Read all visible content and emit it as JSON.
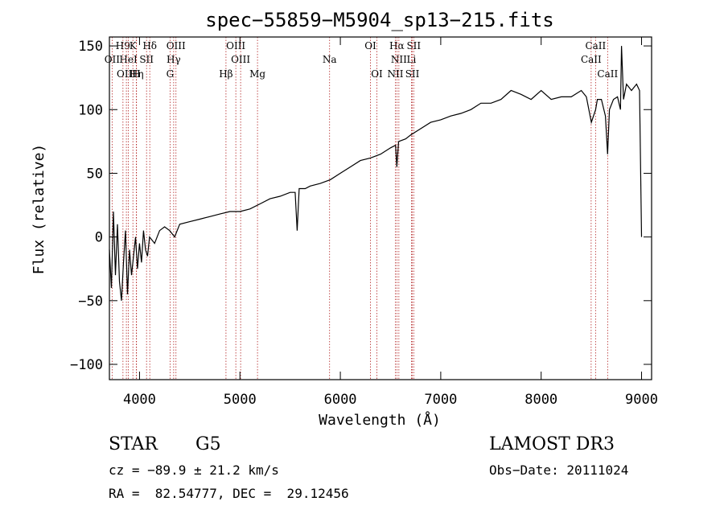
{
  "chart_data": {
    "type": "line",
    "title": "spec−55859−M5904_sp13−215.fits",
    "xlabel": "Wavelength (Å)",
    "ylabel": "Flux (relative)",
    "xlim": [
      3700,
      9100
    ],
    "ylim": [
      -112,
      157
    ],
    "xticks": [
      4000,
      5000,
      6000,
      7000,
      8000,
      9000
    ],
    "yticks": [
      -100,
      -50,
      0,
      50,
      100,
      150
    ],
    "ytick_labels": [
      "−100",
      "−50",
      "0",
      "50",
      "100",
      "150"
    ],
    "series": [
      {
        "name": "spectrum",
        "x": [
          3700,
          3720,
          3740,
          3760,
          3780,
          3800,
          3820,
          3840,
          3860,
          3880,
          3900,
          3920,
          3940,
          3960,
          3980,
          4000,
          4020,
          4040,
          4060,
          4080,
          4100,
          4150,
          4200,
          4250,
          4300,
          4350,
          4400,
          4500,
          4600,
          4700,
          4800,
          4900,
          5000,
          5100,
          5200,
          5300,
          5400,
          5500,
          5550,
          5570,
          5590,
          5650,
          5700,
          5800,
          5900,
          6000,
          6100,
          6200,
          6300,
          6400,
          6500,
          6550,
          6563,
          6580,
          6650,
          6700,
          6800,
          6900,
          7000,
          7100,
          7200,
          7300,
          7400,
          7500,
          7600,
          7700,
          7800,
          7900,
          8000,
          8100,
          8200,
          8300,
          8400,
          8450,
          8500,
          8542,
          8560,
          8600,
          8640,
          8662,
          8680,
          8720,
          8760,
          8790,
          8800,
          8820,
          8850,
          8900,
          8950,
          8980,
          9000
        ],
        "y": [
          -10,
          -40,
          20,
          -30,
          10,
          -35,
          -50,
          -20,
          5,
          -45,
          -10,
          -30,
          -15,
          0,
          -25,
          -5,
          -20,
          5,
          -10,
          -15,
          0,
          -5,
          5,
          8,
          5,
          0,
          10,
          12,
          14,
          16,
          18,
          20,
          20,
          22,
          26,
          30,
          32,
          35,
          35,
          5,
          38,
          38,
          40,
          42,
          45,
          50,
          55,
          60,
          62,
          65,
          70,
          72,
          55,
          75,
          77,
          80,
          85,
          90,
          92,
          95,
          97,
          100,
          105,
          105,
          108,
          115,
          112,
          108,
          115,
          108,
          110,
          110,
          115,
          110,
          90,
          100,
          108,
          108,
          95,
          65,
          100,
          108,
          110,
          100,
          150,
          108,
          120,
          115,
          120,
          115,
          0
        ]
      }
    ],
    "lines": [
      {
        "name": "H9",
        "wavelength": 3835,
        "row": 0
      },
      {
        "name": "K",
        "wavelength": 3934,
        "row": 0
      },
      {
        "name": "Hδ",
        "wavelength": 4102,
        "row": 0
      },
      {
        "name": "OIII",
        "wavelength": 4363,
        "row": 0
      },
      {
        "name": "OIII",
        "wavelength": 4959,
        "row": 0
      },
      {
        "name": "OI",
        "wavelength": 6300,
        "row": 0
      },
      {
        "name": "Hα",
        "wavelength": 6563,
        "row": 0
      },
      {
        "name": "SII",
        "wavelength": 6731,
        "row": 0
      },
      {
        "name": "CaII",
        "wavelength": 8542,
        "row": 0
      },
      {
        "name": "OII",
        "wavelength": 3727,
        "row": 1
      },
      {
        "name": "HeI",
        "wavelength": 3889,
        "row": 1
      },
      {
        "name": "SII",
        "wavelength": 4070,
        "row": 1
      },
      {
        "name": "Hγ",
        "wavelength": 4340,
        "row": 1
      },
      {
        "name": "OIII",
        "wavelength": 5007,
        "row": 1
      },
      {
        "name": "Na",
        "wavelength": 5893,
        "row": 1
      },
      {
        "name": "NII",
        "wavelength": 6583,
        "row": 1
      },
      {
        "name": "Li",
        "wavelength": 6708,
        "row": 1
      },
      {
        "name": "CaII",
        "wavelength": 8498,
        "row": 1
      },
      {
        "name": "OIII",
        "wavelength": 3869,
        "row": 2
      },
      {
        "name": "Hη",
        "wavelength": 3970,
        "row": 2
      },
      {
        "name": "H",
        "wavelength": 3968,
        "row": 2
      },
      {
        "name": "G",
        "wavelength": 4304,
        "row": 2
      },
      {
        "name": "Hβ",
        "wavelength": 4861,
        "row": 2
      },
      {
        "name": "Mg",
        "wavelength": 5175,
        "row": 2
      },
      {
        "name": "OI",
        "wavelength": 6364,
        "row": 2
      },
      {
        "name": "NII",
        "wavelength": 6548,
        "row": 2
      },
      {
        "name": "SII",
        "wavelength": 6717,
        "row": 2
      },
      {
        "name": "CaII",
        "wavelength": 8662,
        "row": 2
      }
    ]
  },
  "info": {
    "class": "STAR",
    "subclass": "G5",
    "survey": "LAMOST DR3",
    "cz": "cz = −89.9 ± 21.2 km/s",
    "obs_date": "Obs−Date: 20111024",
    "radec": "RA =  82.54777, DEC =  29.12456"
  }
}
